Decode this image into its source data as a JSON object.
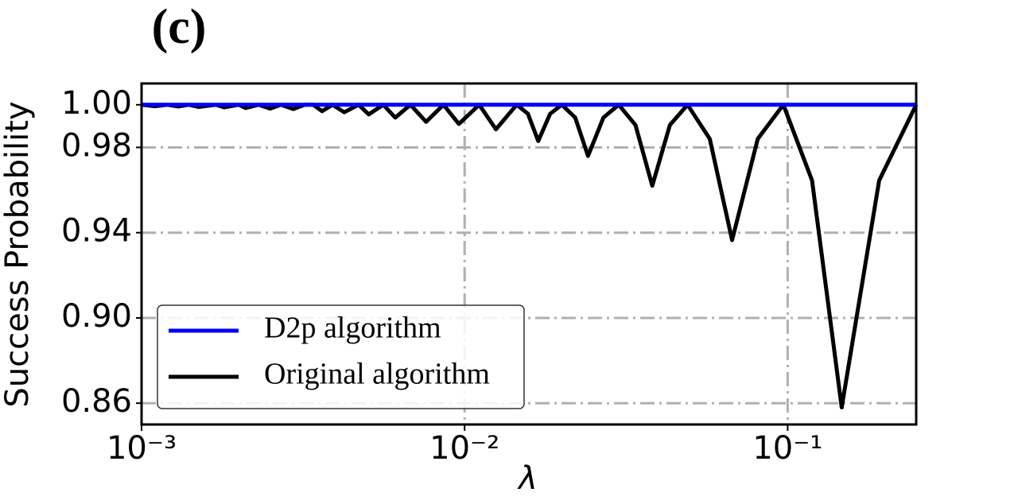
{
  "chart_data": {
    "type": "line",
    "title": "(c)",
    "x_label": "λ",
    "y_label": "Success Probability",
    "xscale": "log",
    "grid": true,
    "legend_position": "lower left",
    "xlim": [
      0.001,
      0.25
    ],
    "ylim": [
      0.85,
      1.01
    ],
    "xticks": [
      {
        "value": 0.001,
        "label": "10⁻³"
      },
      {
        "value": 0.01,
        "label": "10⁻²"
      },
      {
        "value": 0.1,
        "label": "10⁻¹"
      }
    ],
    "yticks": [
      0.86,
      {
        "value": 0.9,
        "label": "0.90"
      },
      0.94,
      0.98,
      {
        "value": 1,
        "label": "1.00"
      }
    ],
    "series": [
      {
        "name": "D2p algorithm",
        "color": "#0000ff",
        "x": [
          0.001,
          0.25
        ],
        "values": [
          1,
          1
        ]
      },
      {
        "name": "Original algorithm",
        "color": "#000000",
        "x": [
          0.001,
          0.0011,
          0.0012,
          0.0013,
          0.0014,
          0.0015,
          0.0017,
          0.0018,
          0.002,
          0.0021,
          0.0023,
          0.0025,
          0.0027,
          0.00295,
          0.0032,
          0.0034,
          0.00362,
          0.0039,
          0.00424,
          0.0047,
          0.00505,
          0.0056,
          0.0061,
          0.0068,
          0.0076,
          0.0086,
          0.0096,
          0.0111,
          0.0125,
          0.0145,
          0.0157,
          0.0169,
          0.0184,
          0.02,
          0.022,
          0.0241,
          0.0269,
          0.03,
          0.0338,
          0.0381,
          0.0432,
          0.049,
          0.0574,
          0.0673,
          0.0808,
          0.097,
          0.119,
          0.147,
          0.192,
          0.25
        ],
        "values": [
          1,
          0.9993,
          1,
          0.9992,
          1,
          0.999,
          1,
          0.9988,
          1,
          0.9985,
          1,
          0.9982,
          1,
          0.998,
          1,
          1,
          0.997,
          1,
          0.9965,
          1,
          0.9955,
          1,
          0.994,
          1,
          0.992,
          1,
          0.991,
          1,
          0.9885,
          1,
          0.9958,
          0.983,
          0.9958,
          1,
          0.994,
          0.976,
          0.994,
          1,
          0.9905,
          0.962,
          0.9905,
          1,
          0.984,
          0.9365,
          0.984,
          1,
          0.9645,
          0.858,
          0.9645,
          1
        ]
      }
    ]
  }
}
